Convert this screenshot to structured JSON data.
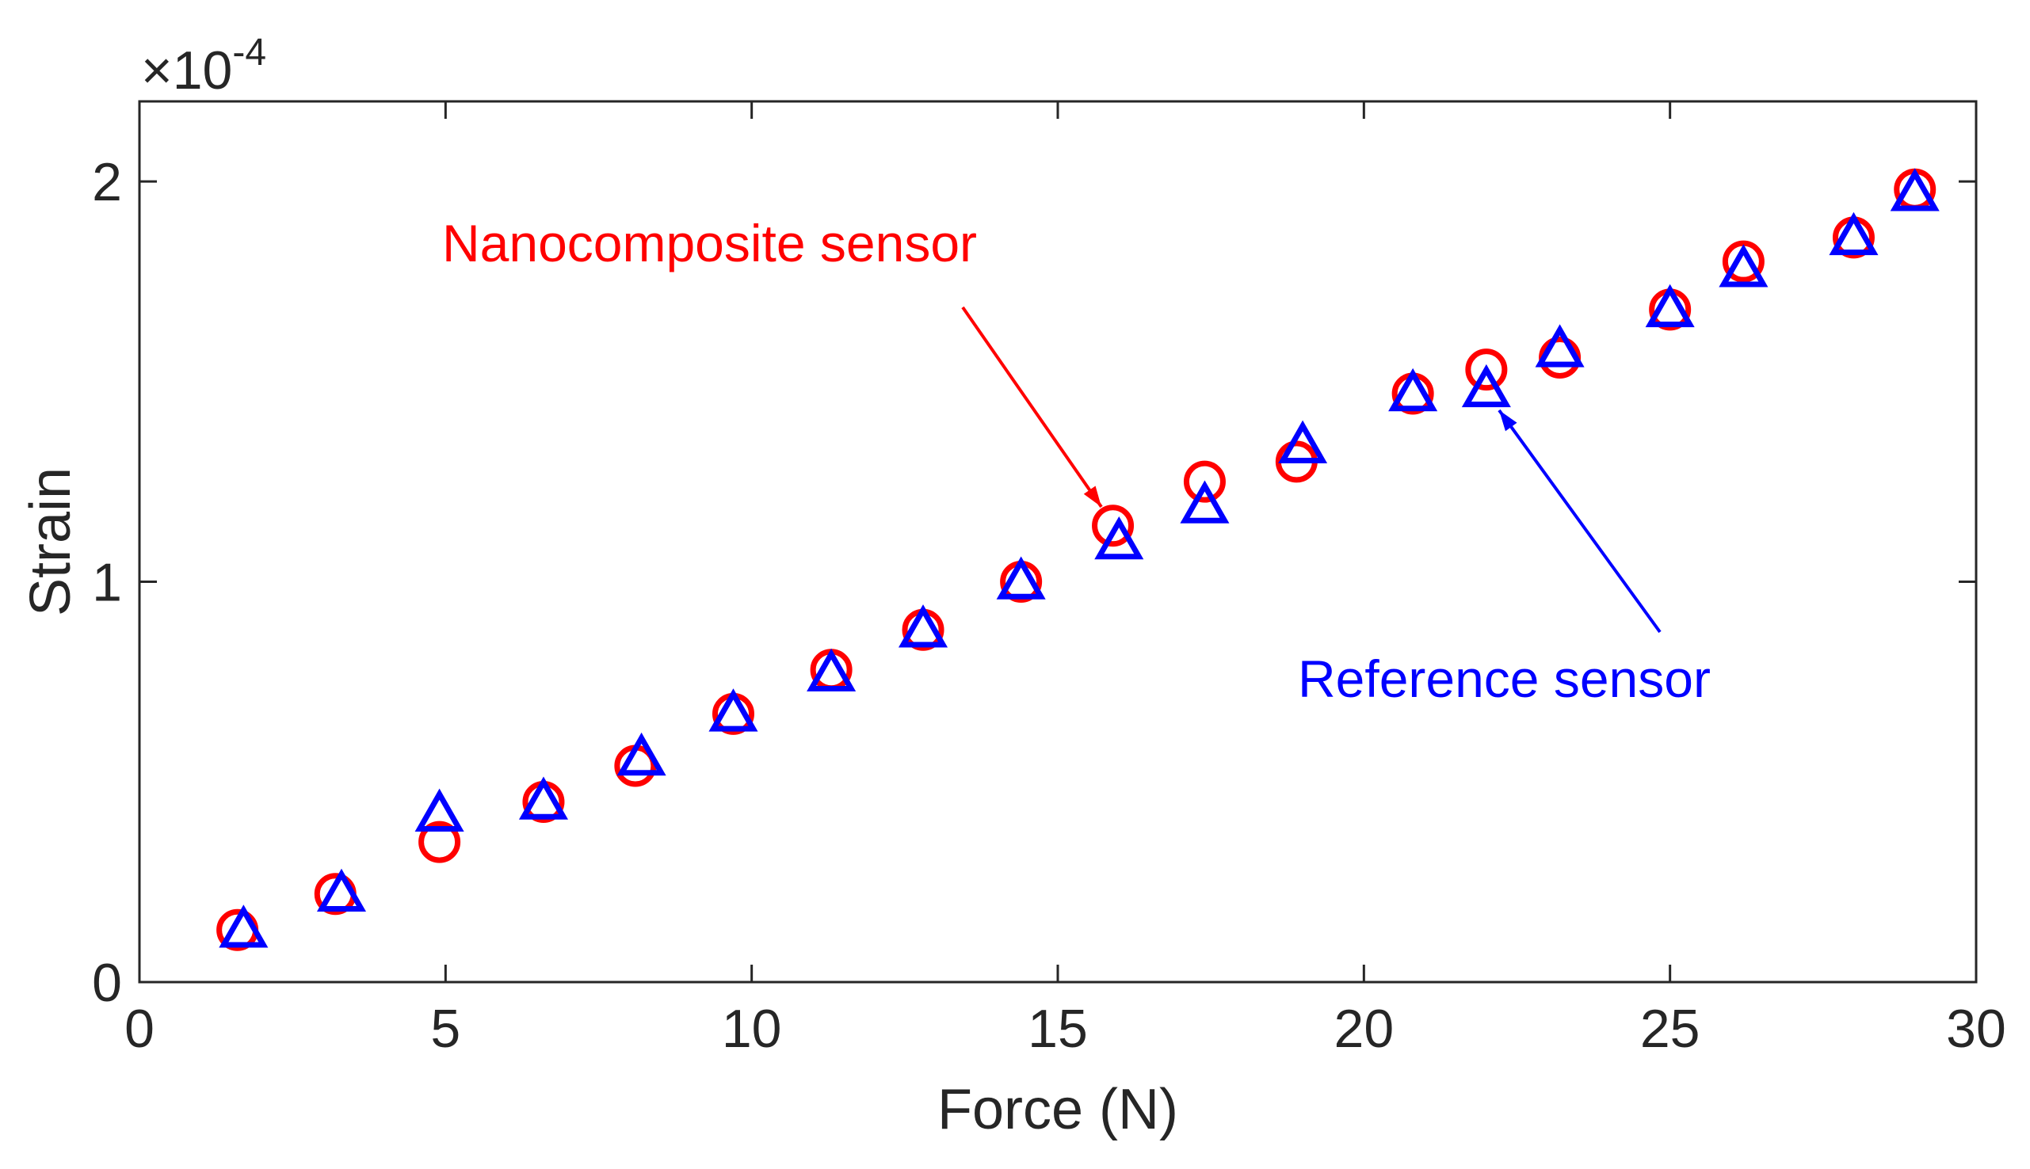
{
  "chart_data": {
    "type": "scatter",
    "xlabel": "Force (N)",
    "ylabel": "Strain",
    "xlim": [
      0,
      30
    ],
    "ylim": [
      0,
      2.2
    ],
    "y_multiplier_label": "×10",
    "y_multiplier_exponent": "-4",
    "xticks": [
      0,
      5,
      10,
      15,
      20,
      25,
      30
    ],
    "yticks": [
      0,
      1,
      2
    ],
    "grid": false,
    "series": [
      {
        "name": "Nanocomposite sensor",
        "marker": "circle",
        "color": "#ff0000",
        "x": [
          1.6,
          3.2,
          4.9,
          6.6,
          8.1,
          9.7,
          11.3,
          12.8,
          14.4,
          15.9,
          17.4,
          18.9,
          20.8,
          22.0,
          23.2,
          25.0,
          26.2,
          28.0,
          29.0
        ],
        "y": [
          0.13,
          0.22,
          0.35,
          0.45,
          0.54,
          0.67,
          0.78,
          0.88,
          1.0,
          1.14,
          1.25,
          1.3,
          1.47,
          1.53,
          1.56,
          1.68,
          1.8,
          1.86,
          1.98
        ]
      },
      {
        "name": "Reference sensor",
        "marker": "triangle",
        "color": "#0000ff",
        "x": [
          1.7,
          3.3,
          4.9,
          6.6,
          8.2,
          9.7,
          11.3,
          12.8,
          14.4,
          16.0,
          17.4,
          19.0,
          20.8,
          22.0,
          23.2,
          25.0,
          26.2,
          28.0,
          29.0
        ],
        "y": [
          0.13,
          0.22,
          0.42,
          0.45,
          0.56,
          0.67,
          0.77,
          0.88,
          1.0,
          1.1,
          1.19,
          1.34,
          1.47,
          1.48,
          1.58,
          1.68,
          1.78,
          1.86,
          1.97
        ]
      }
    ],
    "annotations": [
      {
        "text": "Nanocomposite sensor",
        "color": "#ff0000",
        "target": {
          "x": 15.8,
          "y": 1.17
        }
      },
      {
        "text": "Reference sensor",
        "color": "#0000ff",
        "target": {
          "x": 22.2,
          "y": 1.45
        }
      }
    ]
  }
}
